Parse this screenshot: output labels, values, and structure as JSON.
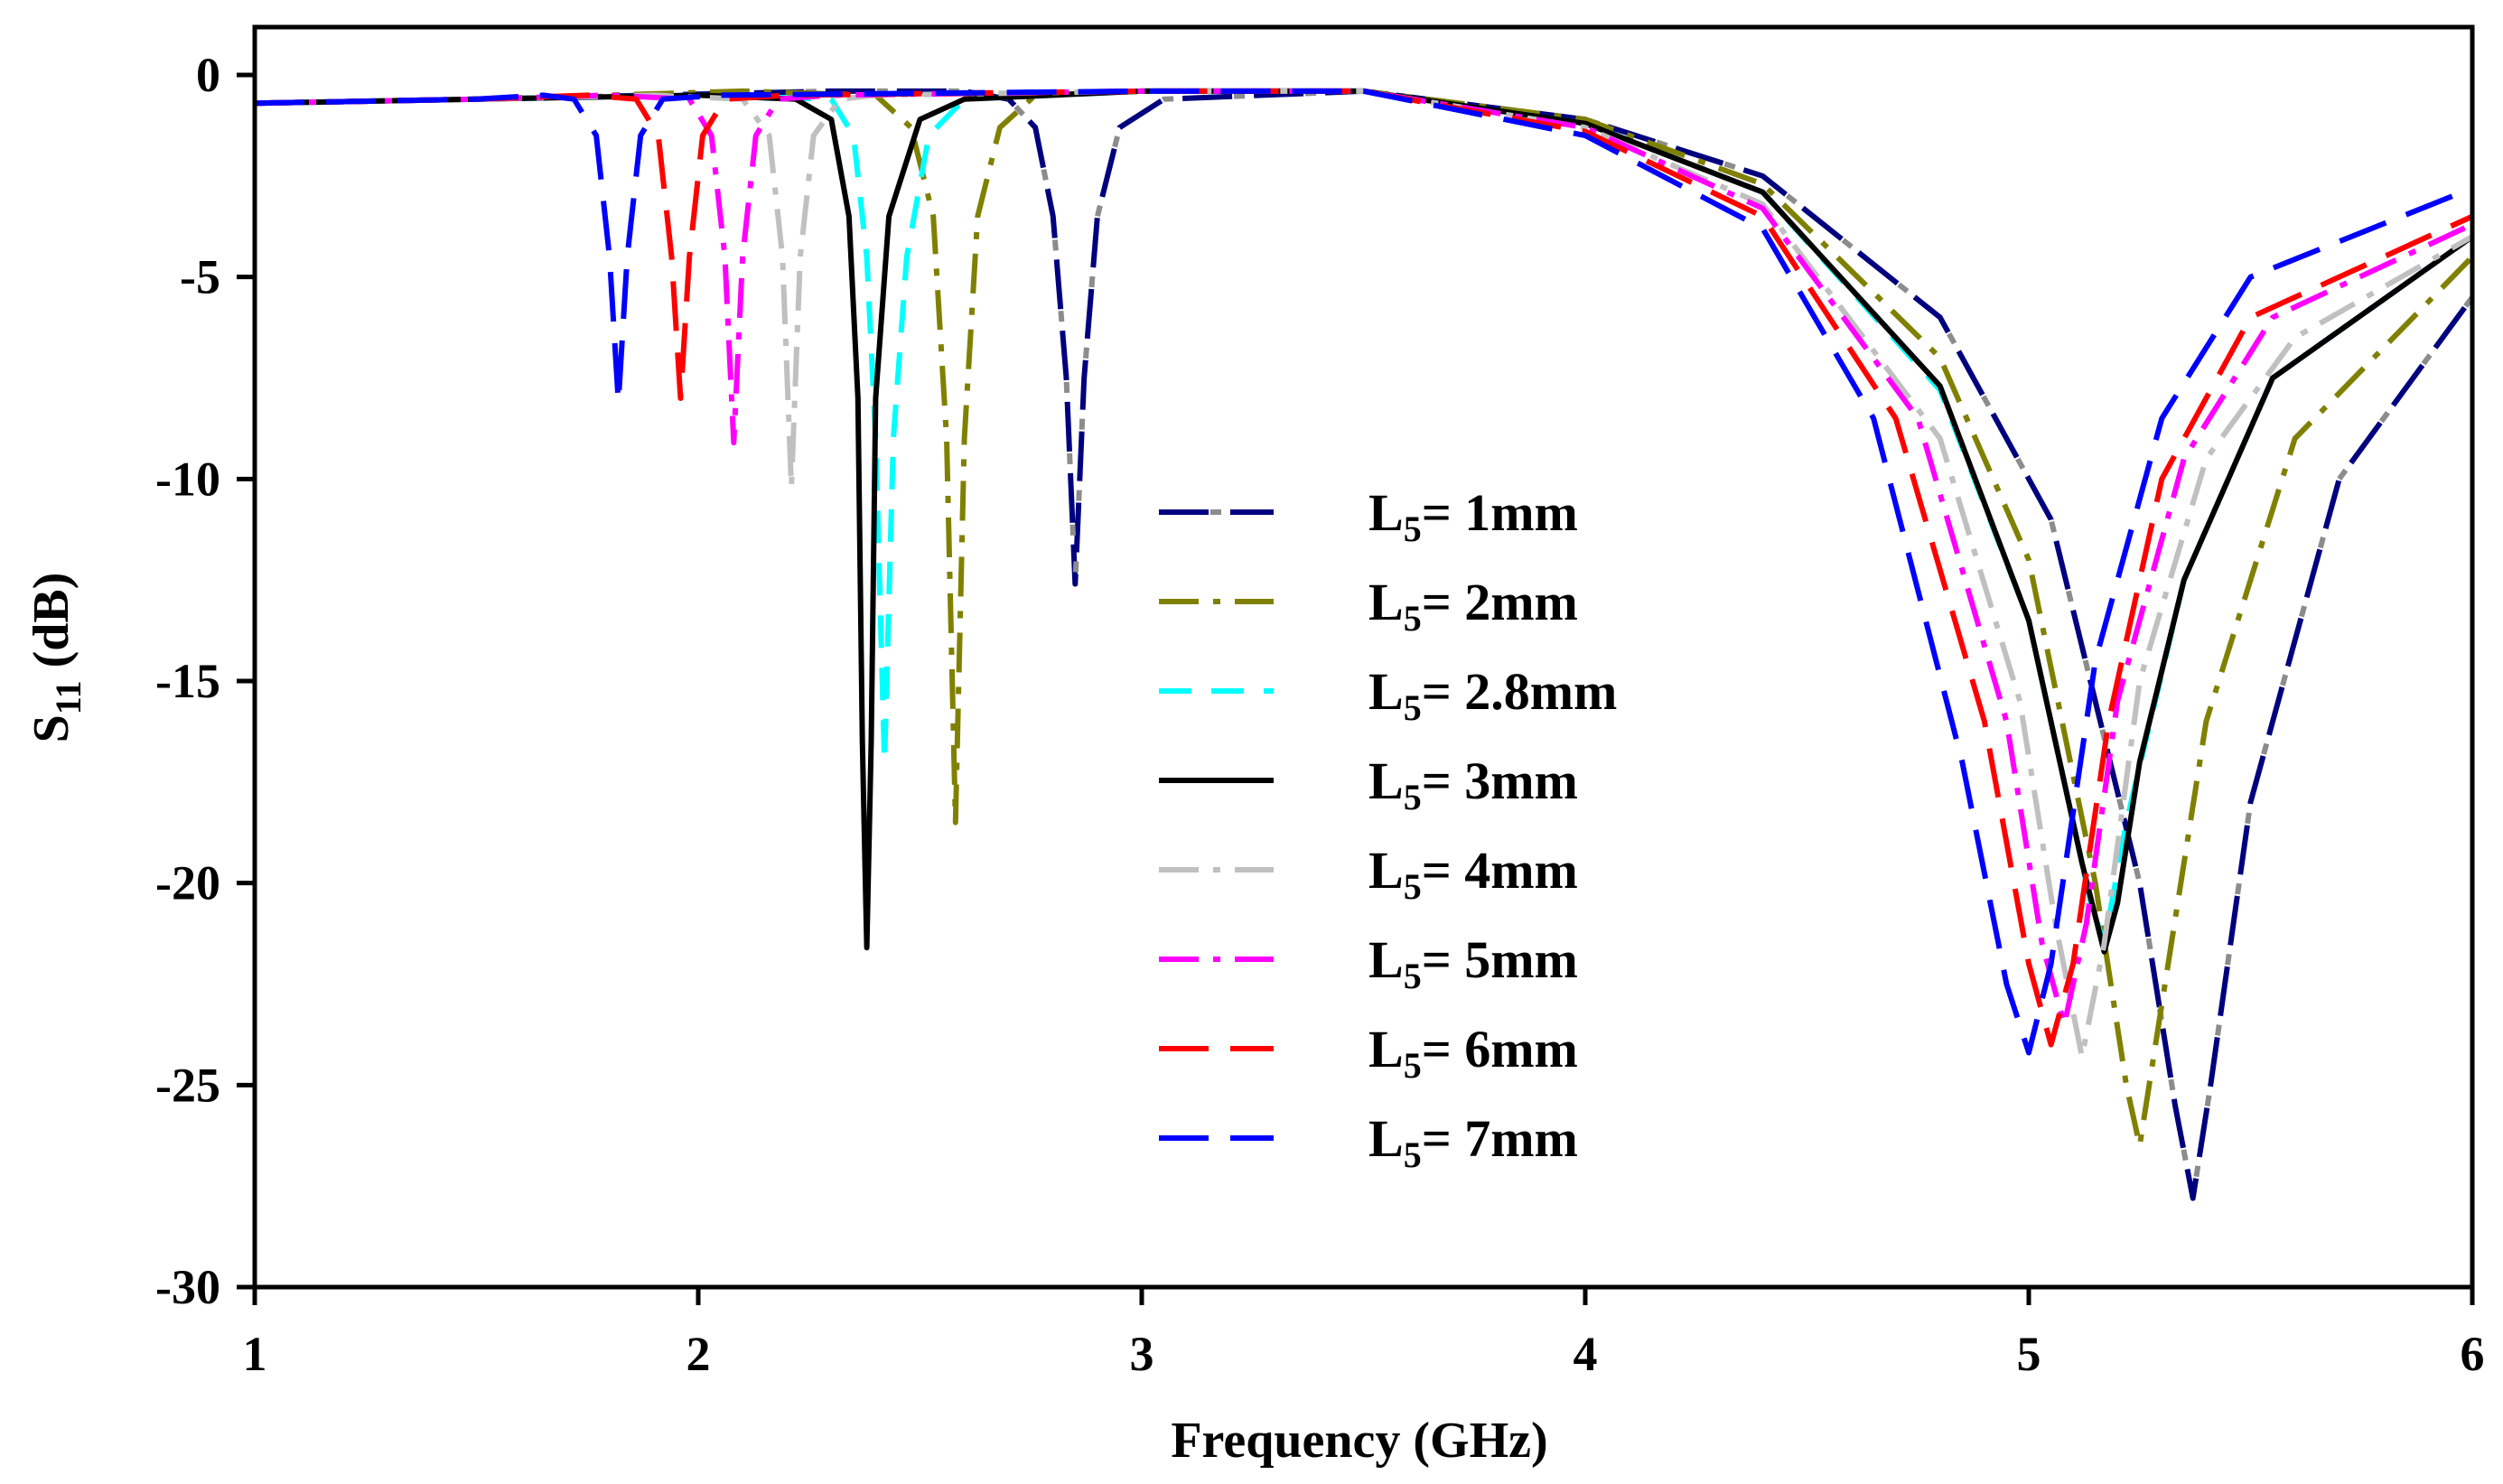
{
  "chart_data": {
    "type": "line",
    "title": "",
    "xlabel": "Frequency (GHz)",
    "ylabel": {
      "main": "S",
      "sub": "11",
      "unit": " (dB)"
    },
    "xlim": [
      1,
      6
    ],
    "ylim": [
      -30,
      0
    ],
    "xticks": [
      1,
      2,
      3,
      4,
      5,
      6
    ],
    "yticks": [
      0,
      -5,
      -10,
      -15,
      -20,
      -25,
      -30
    ],
    "grid": false,
    "legend_position": "center",
    "series": [
      {
        "prefix": "L",
        "sub": "5",
        "value": "= 1mm",
        "color": "#00007f",
        "color2": "#8c8c8c",
        "dash": "long-dash",
        "x": [
          1,
          1.5,
          2.3,
          2.6,
          2.7,
          2.76,
          2.8,
          2.83,
          2.85,
          2.87,
          2.9,
          2.95,
          3.05,
          3.5,
          4.0,
          4.4,
          4.8,
          5.05,
          5.25,
          5.33,
          5.37,
          5.41,
          5.5,
          5.7,
          6.0
        ],
        "y": [
          -0.7,
          -0.6,
          -0.4,
          -0.4,
          -0.6,
          -1.3,
          -3.5,
          -7.5,
          -12.6,
          -7.5,
          -3.5,
          -1.3,
          -0.6,
          -0.4,
          -1.1,
          -2.5,
          -6,
          -11,
          -20,
          -25.5,
          -27.8,
          -25,
          -18,
          -10,
          -5.5
        ]
      },
      {
        "prefix": "L",
        "sub": "5",
        "value": "= 2mm",
        "color": "#808000",
        "dash": "dash-dot",
        "x": [
          1,
          1.5,
          2.1,
          2.4,
          2.48,
          2.53,
          2.56,
          2.58,
          2.6,
          2.63,
          2.68,
          2.76,
          3.0,
          3.5,
          4.0,
          4.4,
          4.8,
          5.0,
          5.15,
          5.22,
          5.25,
          5.3,
          5.4,
          5.6,
          6.0
        ],
        "y": [
          -0.7,
          -0.6,
          -0.4,
          -0.5,
          -1.3,
          -3.5,
          -9,
          -18.5,
          -9,
          -3.5,
          -1.3,
          -0.5,
          -0.4,
          -0.4,
          -1.1,
          -2.7,
          -7,
          -12,
          -20,
          -25,
          -26.5,
          -23,
          -16,
          -9,
          -4.5
        ]
      },
      {
        "prefix": "L",
        "sub": "5",
        "value": "= 2.8mm",
        "color": "#00ffff",
        "dash": "dash",
        "x": [
          1,
          1.5,
          2.0,
          2.3,
          2.35,
          2.38,
          2.4,
          2.42,
          2.44,
          2.47,
          2.52,
          2.6,
          3.0,
          3.5,
          4.0,
          4.4,
          4.8,
          5.0,
          5.1,
          5.14,
          5.17,
          5.22,
          5.35,
          5.55,
          6.0
        ],
        "y": [
          -0.7,
          -0.6,
          -0.5,
          -0.6,
          -1.5,
          -4.5,
          -9,
          -17,
          -9,
          -4.5,
          -1.5,
          -0.6,
          -0.4,
          -0.4,
          -1.2,
          -2.9,
          -7.8,
          -13.5,
          -18.5,
          -20.5,
          -21.5,
          -18.5,
          -12.5,
          -7.5,
          -4
        ]
      },
      {
        "prefix": "L",
        "sub": "5",
        "value": "= 3mm",
        "color": "#000000",
        "dash": "solid",
        "x": [
          1,
          1.5,
          2.0,
          2.22,
          2.3,
          2.34,
          2.36,
          2.37,
          2.38,
          2.39,
          2.4,
          2.43,
          2.5,
          2.6,
          3.0,
          3.5,
          4.0,
          4.4,
          4.8,
          5.0,
          5.12,
          5.17,
          5.2,
          5.25,
          5.35,
          5.55,
          6.0
        ],
        "y": [
          -0.7,
          -0.6,
          -0.5,
          -0.6,
          -1.1,
          -3.5,
          -8,
          -16.5,
          -21.6,
          -16.5,
          -8,
          -3.5,
          -1.1,
          -0.6,
          -0.4,
          -0.4,
          -1.2,
          -2.9,
          -7.7,
          -13.5,
          -19.5,
          -21.7,
          -20.5,
          -17,
          -12.5,
          -7.5,
          -4
        ]
      },
      {
        "prefix": "L",
        "sub": "5",
        "value": "= 4mm",
        "color": "#c0c0c0",
        "dash": "dash-dot",
        "x": [
          1,
          1.5,
          1.9,
          2.1,
          2.16,
          2.19,
          2.21,
          2.23,
          2.26,
          2.32,
          2.4,
          3.0,
          3.5,
          4.0,
          4.4,
          4.8,
          4.98,
          5.06,
          5.12,
          5.17,
          5.25,
          5.4,
          5.6,
          6.0
        ],
        "y": [
          -0.7,
          -0.6,
          -0.5,
          -0.6,
          -1.5,
          -4.5,
          -10.2,
          -4.5,
          -1.5,
          -0.6,
          -0.5,
          -0.4,
          -0.4,
          -1.3,
          -3.2,
          -9,
          -15.5,
          -21,
          -24.3,
          -21.5,
          -15,
          -9.5,
          -6.5,
          -4
        ]
      },
      {
        "prefix": "L",
        "sub": "5",
        "value": "= 5mm",
        "color": "#ff00ff",
        "dash": "dash-dot",
        "x": [
          1,
          1.5,
          1.8,
          1.98,
          2.03,
          2.06,
          2.08,
          2.1,
          2.13,
          2.18,
          2.3,
          3.0,
          3.5,
          4.0,
          4.4,
          4.75,
          4.95,
          5.03,
          5.08,
          5.13,
          5.2,
          5.35,
          5.55,
          6.0
        ],
        "y": [
          -0.7,
          -0.6,
          -0.5,
          -0.6,
          -1.5,
          -4.5,
          -9.1,
          -4.5,
          -1.5,
          -0.6,
          -0.5,
          -0.4,
          -0.4,
          -1.3,
          -3.3,
          -8.5,
          -16,
          -21.5,
          -23.5,
          -21,
          -15.5,
          -9.5,
          -6,
          -3.7
        ]
      },
      {
        "prefix": "L",
        "sub": "5",
        "value": "= 6mm",
        "color": "#ff0000",
        "dash": "long-dash",
        "x": [
          1,
          1.5,
          1.75,
          1.86,
          1.91,
          1.94,
          1.96,
          1.98,
          2.01,
          2.06,
          2.2,
          3.0,
          3.5,
          4.0,
          4.4,
          4.7,
          4.9,
          5.0,
          5.05,
          5.1,
          5.18,
          5.3,
          5.5,
          6.0
        ],
        "y": [
          -0.7,
          -0.6,
          -0.5,
          -0.6,
          -1.5,
          -4.5,
          -8,
          -4.5,
          -1.5,
          -0.6,
          -0.5,
          -0.4,
          -0.4,
          -1.4,
          -3.5,
          -8.5,
          -16,
          -22,
          -24,
          -22,
          -16,
          -10,
          -6,
          -3.5
        ]
      },
      {
        "prefix": "L",
        "sub": "5",
        "value": "= 7mm",
        "color": "#0000ff",
        "dash": "long-dash",
        "x": [
          1,
          1.5,
          1.65,
          1.72,
          1.77,
          1.8,
          1.82,
          1.84,
          1.87,
          1.92,
          2.05,
          3.0,
          3.5,
          4.0,
          4.4,
          4.65,
          4.85,
          4.95,
          5.0,
          5.05,
          5.15,
          5.3,
          5.5,
          6.0
        ],
        "y": [
          -0.7,
          -0.6,
          -0.5,
          -0.6,
          -1.5,
          -4.5,
          -8.1,
          -4.5,
          -1.5,
          -0.6,
          -0.5,
          -0.4,
          -0.4,
          -1.5,
          -3.8,
          -8.5,
          -17,
          -22.5,
          -24.2,
          -22,
          -14.5,
          -8.5,
          -5,
          -2.8
        ]
      }
    ]
  }
}
